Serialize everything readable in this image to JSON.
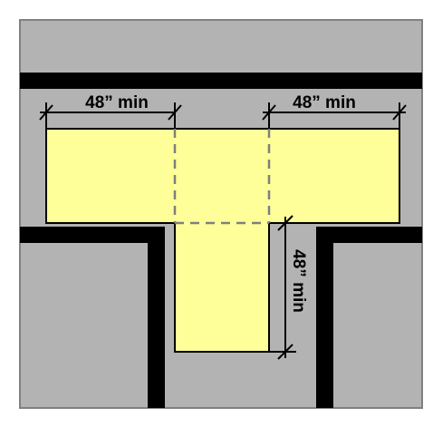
{
  "labels": {
    "top_left": "48” min",
    "top_right": "48” min",
    "vertical": "48” min"
  },
  "colors": {
    "floor": "#b3b3b3",
    "walls": "#000000",
    "clear_space": "#ffff99",
    "dashed_line": "#7f7f7f",
    "frame": "#808080"
  }
}
